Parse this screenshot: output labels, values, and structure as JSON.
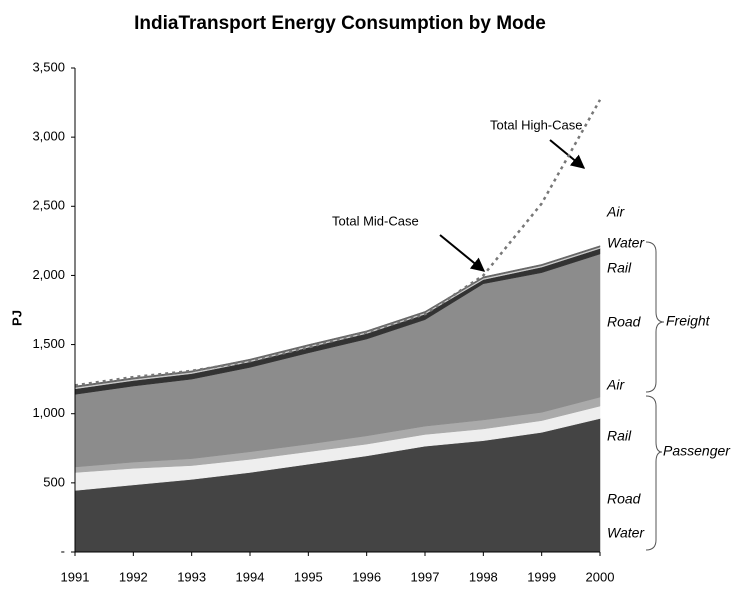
{
  "chart_data": {
    "type": "stacked-area",
    "title": "IndiaTransport Energy Consumption by Mode",
    "y_label": "PJ",
    "categories": [
      "1991",
      "1992",
      "1993",
      "1994",
      "1995",
      "1996",
      "1997",
      "1998",
      "1999",
      "2000"
    ],
    "ylim": [
      0,
      3500
    ],
    "yticks": [
      {
        "value": 0,
        "label": "-"
      },
      500,
      {
        "value": 1000,
        "label": "1,000"
      },
      {
        "value": 1500,
        "label": "1,500"
      },
      {
        "value": 2000,
        "label": "2,000"
      },
      {
        "value": 2500,
        "label": "2,500"
      },
      {
        "value": 3000,
        "label": "3,000"
      },
      {
        "value": 3500,
        "label": "3,500"
      }
    ],
    "series": [
      {
        "name": "Water",
        "color": "#555555",
        "label_color": "#777777",
        "values": [
          5,
          5,
          5,
          5,
          5,
          5,
          5,
          5,
          5,
          5
        ]
      },
      {
        "name": "Road",
        "color": "#444444",
        "label_color": "#555555",
        "values": [
          440,
          480,
          520,
          570,
          630,
          690,
          760,
          800,
          860,
          960
        ]
      },
      {
        "name": "Rail",
        "color": "#eeeeee",
        "label_color": "#aaaaaa",
        "values": [
          130,
          120,
          100,
          95,
          90,
          85,
          85,
          85,
          85,
          90
        ]
      },
      {
        "name": "Air",
        "color": "#aaaaaa",
        "label_color": "#aaaaaa",
        "values": [
          40,
          45,
          50,
          55,
          55,
          60,
          60,
          65,
          60,
          65
        ]
      },
      {
        "name": "Road",
        "color": "#8c8c8c",
        "label_color": "#555555",
        "values": [
          525,
          550,
          575,
          610,
          660,
          700,
          770,
          985,
          1010,
          1035
        ]
      },
      {
        "name": "Rail",
        "color": "#333333",
        "label_color": "#000000",
        "values": [
          40,
          40,
          40,
          40,
          40,
          40,
          40,
          30,
          40,
          40
        ]
      },
      {
        "name": "Water",
        "color": "#cccccc",
        "label_color": "#cccccc",
        "values": [
          10,
          10,
          10,
          10,
          10,
          10,
          10,
          10,
          10,
          10
        ]
      },
      {
        "name": "Air",
        "color": "#666666",
        "label_color": "#999999",
        "values": [
          10,
          10,
          10,
          10,
          10,
          10,
          10,
          10,
          10,
          10
        ]
      }
    ],
    "high_case": {
      "name": "Total High-Case",
      "color": "#777777",
      "values": [
        1205,
        1265,
        1310,
        1380,
        1480,
        1590,
        1720,
        2000,
        2520,
        3270
      ]
    },
    "annotations": [
      "Total High-Case",
      "Total Mid-Case"
    ],
    "groups": [
      "Freight",
      "Passenger"
    ]
  }
}
